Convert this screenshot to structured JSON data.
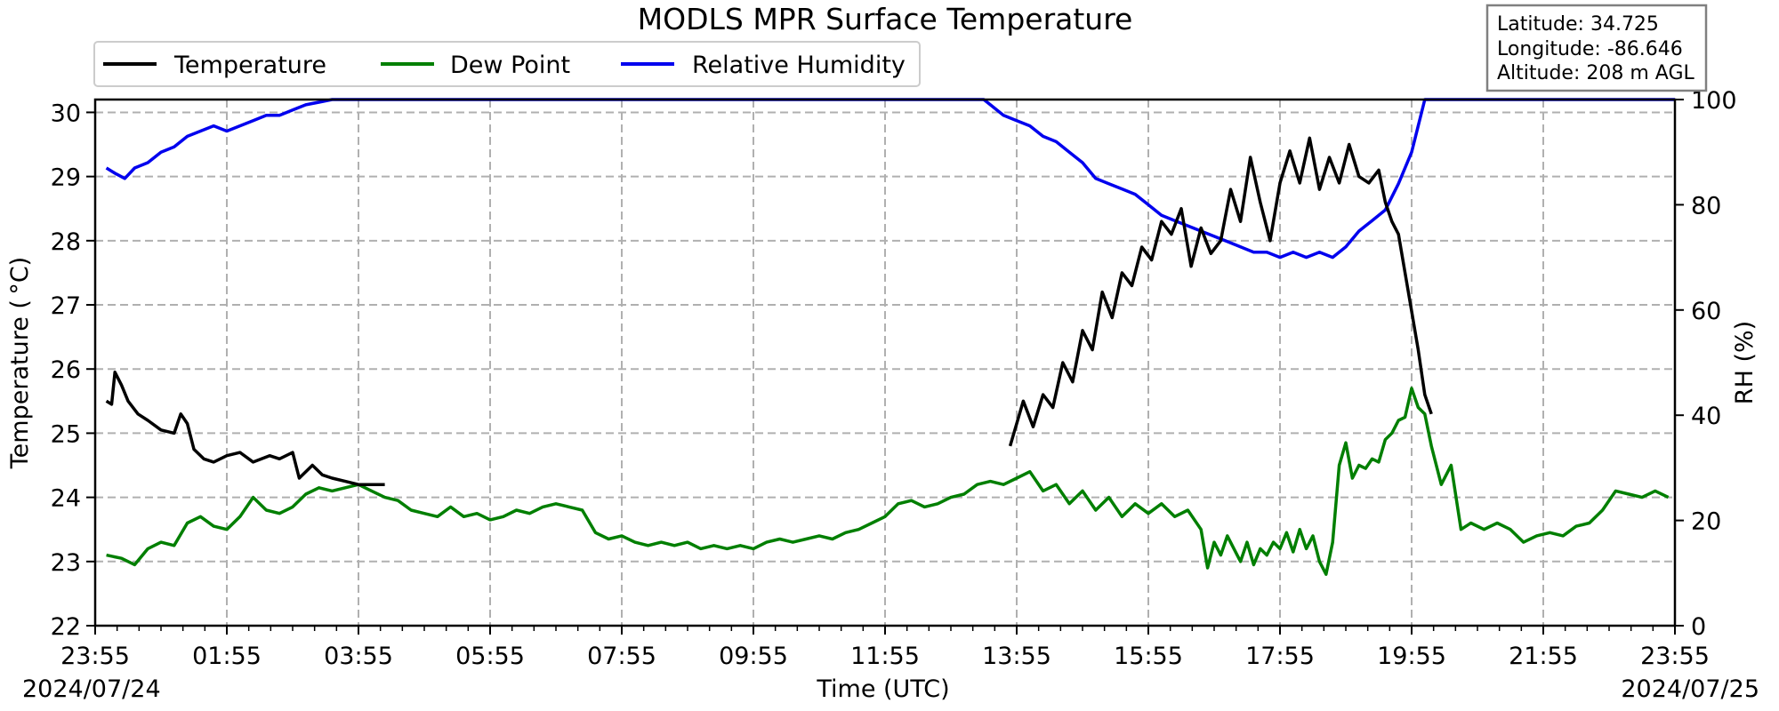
{
  "chart_data": {
    "type": "line",
    "title": "MODLS MPR Surface Temperature",
    "xlabel": "Time (UTC)",
    "ylabel": "Temperature ($^\\circ$C)",
    "ylabel_display": "Temperature ( °C)",
    "y2label": "RH (%)",
    "x_ticks": [
      "23:55",
      "01:55",
      "03:55",
      "05:55",
      "07:55",
      "09:55",
      "11:55",
      "13:55",
      "15:55",
      "17:55",
      "19:55",
      "21:55",
      "23:55"
    ],
    "x_range_hours": [
      0,
      24
    ],
    "start_date": "2024/07/24",
    "end_date": "2024/07/25",
    "ylim": [
      22,
      30.2
    ],
    "y_ticks": [
      22,
      23,
      24,
      25,
      26,
      27,
      28,
      29,
      30
    ],
    "y2lim": [
      0,
      100
    ],
    "y2_ticks": [
      0,
      20,
      40,
      60,
      80,
      100
    ],
    "grid": true,
    "legend_position": "top-left",
    "info_box": {
      "latitude": "Latitude: 34.725",
      "longitude": "Longitude: -86.646",
      "altitude": "Altitude: 208 m AGL"
    },
    "series": [
      {
        "name": "Temperature",
        "color": "#000000",
        "axis": "left",
        "points": [
          [
            0.17,
            25.5
          ],
          [
            0.25,
            25.45
          ],
          [
            0.3,
            25.95
          ],
          [
            0.4,
            25.75
          ],
          [
            0.5,
            25.5
          ],
          [
            0.65,
            25.3
          ],
          [
            0.8,
            25.2
          ],
          [
            1.0,
            25.05
          ],
          [
            1.2,
            25.0
          ],
          [
            1.3,
            25.3
          ],
          [
            1.4,
            25.15
          ],
          [
            1.5,
            24.75
          ],
          [
            1.65,
            24.6
          ],
          [
            1.8,
            24.55
          ],
          [
            2.0,
            24.65
          ],
          [
            2.2,
            24.7
          ],
          [
            2.4,
            24.55
          ],
          [
            2.65,
            24.65
          ],
          [
            2.8,
            24.6
          ],
          [
            3.0,
            24.7
          ],
          [
            3.1,
            24.3
          ],
          [
            3.3,
            24.5
          ],
          [
            3.45,
            24.35
          ],
          [
            3.6,
            24.3
          ],
          [
            3.8,
            24.25
          ],
          [
            4.0,
            24.2
          ],
          [
            4.2,
            24.2
          ],
          [
            4.4,
            24.2
          ]
        ],
        "points2": [
          [
            13.9,
            24.8
          ],
          [
            14.1,
            25.5
          ],
          [
            14.25,
            25.1
          ],
          [
            14.4,
            25.6
          ],
          [
            14.55,
            25.4
          ],
          [
            14.7,
            26.1
          ],
          [
            14.85,
            25.8
          ],
          [
            15.0,
            26.6
          ],
          [
            15.15,
            26.3
          ],
          [
            15.3,
            27.2
          ],
          [
            15.45,
            26.8
          ],
          [
            15.6,
            27.5
          ],
          [
            15.75,
            27.3
          ],
          [
            15.9,
            27.9
          ],
          [
            16.05,
            27.7
          ],
          [
            16.2,
            28.3
          ],
          [
            16.35,
            28.1
          ],
          [
            16.5,
            28.5
          ],
          [
            16.65,
            27.6
          ],
          [
            16.8,
            28.2
          ],
          [
            16.95,
            27.8
          ],
          [
            17.1,
            28.0
          ],
          [
            17.25,
            28.8
          ],
          [
            17.4,
            28.3
          ],
          [
            17.55,
            29.3
          ],
          [
            17.7,
            28.6
          ],
          [
            17.85,
            28.0
          ],
          [
            18.0,
            28.9
          ],
          [
            18.15,
            29.4
          ],
          [
            18.3,
            28.9
          ],
          [
            18.45,
            29.6
          ],
          [
            18.6,
            28.8
          ],
          [
            18.75,
            29.3
          ],
          [
            18.9,
            28.9
          ],
          [
            19.05,
            29.5
          ],
          [
            19.2,
            29.0
          ],
          [
            19.35,
            28.9
          ],
          [
            19.5,
            29.1
          ],
          [
            19.6,
            28.6
          ],
          [
            19.7,
            28.3
          ],
          [
            19.8,
            28.1
          ],
          [
            19.9,
            27.5
          ],
          [
            20.0,
            26.9
          ],
          [
            20.1,
            26.3
          ],
          [
            20.2,
            25.6
          ],
          [
            20.3,
            25.3
          ]
        ]
      },
      {
        "name": "Dew Point",
        "color": "#007f00",
        "axis": "left",
        "points": [
          [
            0.17,
            23.1
          ],
          [
            0.4,
            23.05
          ],
          [
            0.6,
            22.95
          ],
          [
            0.8,
            23.2
          ],
          [
            1.0,
            23.3
          ],
          [
            1.2,
            23.25
          ],
          [
            1.4,
            23.6
          ],
          [
            1.6,
            23.7
          ],
          [
            1.8,
            23.55
          ],
          [
            2.0,
            23.5
          ],
          [
            2.2,
            23.7
          ],
          [
            2.4,
            24.0
          ],
          [
            2.6,
            23.8
          ],
          [
            2.8,
            23.75
          ],
          [
            3.0,
            23.85
          ],
          [
            3.2,
            24.05
          ],
          [
            3.4,
            24.15
          ],
          [
            3.6,
            24.1
          ],
          [
            3.8,
            24.15
          ],
          [
            4.0,
            24.2
          ],
          [
            4.2,
            24.1
          ],
          [
            4.4,
            24.0
          ],
          [
            4.6,
            23.95
          ],
          [
            4.8,
            23.8
          ],
          [
            5.0,
            23.75
          ],
          [
            5.2,
            23.7
          ],
          [
            5.4,
            23.85
          ],
          [
            5.6,
            23.7
          ],
          [
            5.8,
            23.75
          ],
          [
            6.0,
            23.65
          ],
          [
            6.2,
            23.7
          ],
          [
            6.4,
            23.8
          ],
          [
            6.6,
            23.75
          ],
          [
            6.8,
            23.85
          ],
          [
            7.0,
            23.9
          ],
          [
            7.2,
            23.85
          ],
          [
            7.4,
            23.8
          ],
          [
            7.6,
            23.45
          ],
          [
            7.8,
            23.35
          ],
          [
            8.0,
            23.4
          ],
          [
            8.2,
            23.3
          ],
          [
            8.4,
            23.25
          ],
          [
            8.6,
            23.3
          ],
          [
            8.8,
            23.25
          ],
          [
            9.0,
            23.3
          ],
          [
            9.2,
            23.2
          ],
          [
            9.4,
            23.25
          ],
          [
            9.6,
            23.2
          ],
          [
            9.8,
            23.25
          ],
          [
            10.0,
            23.2
          ],
          [
            10.2,
            23.3
          ],
          [
            10.4,
            23.35
          ],
          [
            10.6,
            23.3
          ],
          [
            10.8,
            23.35
          ],
          [
            11.0,
            23.4
          ],
          [
            11.2,
            23.35
          ],
          [
            11.4,
            23.45
          ],
          [
            11.6,
            23.5
          ],
          [
            11.8,
            23.6
          ],
          [
            12.0,
            23.7
          ],
          [
            12.2,
            23.9
          ],
          [
            12.4,
            23.95
          ],
          [
            12.6,
            23.85
          ],
          [
            12.8,
            23.9
          ],
          [
            13.0,
            24.0
          ],
          [
            13.2,
            24.05
          ],
          [
            13.4,
            24.2
          ],
          [
            13.6,
            24.25
          ],
          [
            13.8,
            24.2
          ],
          [
            14.0,
            24.3
          ],
          [
            14.2,
            24.4
          ],
          [
            14.4,
            24.1
          ],
          [
            14.6,
            24.2
          ],
          [
            14.8,
            23.9
          ],
          [
            15.0,
            24.1
          ],
          [
            15.2,
            23.8
          ],
          [
            15.4,
            24.0
          ],
          [
            15.6,
            23.7
          ],
          [
            15.8,
            23.9
          ],
          [
            16.0,
            23.75
          ],
          [
            16.2,
            23.9
          ],
          [
            16.4,
            23.7
          ],
          [
            16.6,
            23.8
          ],
          [
            16.8,
            23.5
          ],
          [
            16.9,
            22.9
          ],
          [
            17.0,
            23.3
          ],
          [
            17.1,
            23.1
          ],
          [
            17.2,
            23.4
          ],
          [
            17.3,
            23.2
          ],
          [
            17.4,
            23.0
          ],
          [
            17.5,
            23.3
          ],
          [
            17.6,
            22.95
          ],
          [
            17.7,
            23.2
          ],
          [
            17.8,
            23.1
          ],
          [
            17.9,
            23.3
          ],
          [
            18.0,
            23.2
          ],
          [
            18.1,
            23.45
          ],
          [
            18.2,
            23.15
          ],
          [
            18.3,
            23.5
          ],
          [
            18.4,
            23.2
          ],
          [
            18.5,
            23.4
          ],
          [
            18.6,
            23.0
          ],
          [
            18.7,
            22.8
          ],
          [
            18.8,
            23.3
          ],
          [
            18.9,
            24.5
          ],
          [
            19.0,
            24.85
          ],
          [
            19.1,
            24.3
          ],
          [
            19.2,
            24.5
          ],
          [
            19.3,
            24.45
          ],
          [
            19.4,
            24.6
          ],
          [
            19.5,
            24.55
          ],
          [
            19.6,
            24.9
          ],
          [
            19.7,
            25.0
          ],
          [
            19.8,
            25.2
          ],
          [
            19.9,
            25.25
          ],
          [
            20.0,
            25.7
          ],
          [
            20.1,
            25.4
          ],
          [
            20.2,
            25.3
          ],
          [
            20.3,
            24.8
          ],
          [
            20.45,
            24.2
          ],
          [
            20.6,
            24.5
          ],
          [
            20.75,
            23.5
          ],
          [
            20.9,
            23.6
          ],
          [
            21.1,
            23.5
          ],
          [
            21.3,
            23.6
          ],
          [
            21.5,
            23.5
          ],
          [
            21.7,
            23.3
          ],
          [
            21.9,
            23.4
          ],
          [
            22.1,
            23.45
          ],
          [
            22.3,
            23.4
          ],
          [
            22.5,
            23.55
          ],
          [
            22.7,
            23.6
          ],
          [
            22.9,
            23.8
          ],
          [
            23.1,
            24.1
          ],
          [
            23.3,
            24.05
          ],
          [
            23.5,
            24.0
          ],
          [
            23.7,
            24.1
          ],
          [
            23.9,
            24.0
          ]
        ]
      },
      {
        "name": "Relative Humidity",
        "color": "#0000ee",
        "axis": "right",
        "points": [
          [
            0.17,
            87
          ],
          [
            0.3,
            86
          ],
          [
            0.45,
            85
          ],
          [
            0.6,
            87
          ],
          [
            0.8,
            88
          ],
          [
            1.0,
            90
          ],
          [
            1.2,
            91
          ],
          [
            1.4,
            93
          ],
          [
            1.6,
            94
          ],
          [
            1.8,
            95
          ],
          [
            2.0,
            94
          ],
          [
            2.2,
            95
          ],
          [
            2.4,
            96
          ],
          [
            2.6,
            97
          ],
          [
            2.8,
            97
          ],
          [
            3.0,
            98
          ],
          [
            3.2,
            99
          ],
          [
            3.4,
            99.5
          ],
          [
            3.6,
            100
          ],
          [
            4.0,
            100
          ],
          [
            5.0,
            100
          ],
          [
            7.0,
            100
          ],
          [
            9.0,
            100
          ],
          [
            11.0,
            100
          ],
          [
            12.5,
            100
          ],
          [
            13.5,
            100
          ],
          [
            13.6,
            99
          ],
          [
            13.8,
            97
          ],
          [
            14.0,
            96
          ],
          [
            14.2,
            95
          ],
          [
            14.4,
            93
          ],
          [
            14.6,
            92
          ],
          [
            14.8,
            90
          ],
          [
            15.0,
            88
          ],
          [
            15.2,
            85
          ],
          [
            15.4,
            84
          ],
          [
            15.6,
            83
          ],
          [
            15.8,
            82
          ],
          [
            16.0,
            80
          ],
          [
            16.2,
            78
          ],
          [
            16.4,
            77
          ],
          [
            16.6,
            76
          ],
          [
            16.8,
            75
          ],
          [
            17.0,
            74
          ],
          [
            17.2,
            73
          ],
          [
            17.4,
            72
          ],
          [
            17.6,
            71
          ],
          [
            17.8,
            71
          ],
          [
            18.0,
            70
          ],
          [
            18.2,
            71
          ],
          [
            18.4,
            70
          ],
          [
            18.6,
            71
          ],
          [
            18.8,
            70
          ],
          [
            19.0,
            72
          ],
          [
            19.2,
            75
          ],
          [
            19.4,
            77
          ],
          [
            19.6,
            79
          ],
          [
            19.8,
            84
          ],
          [
            20.0,
            90
          ],
          [
            20.1,
            95
          ],
          [
            20.2,
            100
          ],
          [
            21.0,
            100
          ],
          [
            22.0,
            100
          ],
          [
            23.0,
            100
          ],
          [
            24.0,
            100
          ]
        ]
      }
    ]
  }
}
